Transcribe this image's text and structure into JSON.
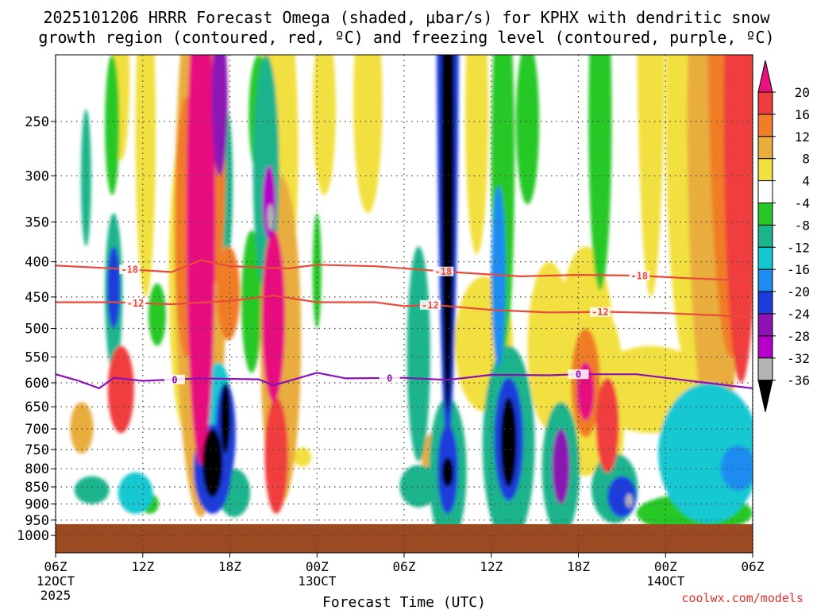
{
  "chart_data": {
    "type": "heatmap",
    "title_line1": "2025101206 HRRR Forecast Omega (shaded, μbar/s) for KPHX with dendritic snow",
    "title_line2": "growth region (contoured, red, ºC) and freezing level (contoured, purple, ºC)",
    "xlabel": "Forecast Time (UTC)",
    "watermark": "coolwx.com/models",
    "y_axis": {
      "scale": "log-pressure",
      "inverted": true,
      "range": [
        1060,
        200
      ],
      "ticks": [
        250,
        300,
        350,
        400,
        450,
        500,
        550,
        600,
        650,
        700,
        750,
        800,
        850,
        900,
        950,
        1000
      ]
    },
    "x_axis": {
      "range_hours": [
        0,
        48
      ],
      "ticks": [
        {
          "h": 0,
          "label": "06Z",
          "sub1": "12OCT",
          "sub2": "2025"
        },
        {
          "h": 6,
          "label": "12Z",
          "sub1": "",
          "sub2": ""
        },
        {
          "h": 12,
          "label": "18Z",
          "sub1": "",
          "sub2": ""
        },
        {
          "h": 18,
          "label": "00Z",
          "sub1": "13OCT",
          "sub2": ""
        },
        {
          "h": 24,
          "label": "06Z",
          "sub1": "",
          "sub2": ""
        },
        {
          "h": 30,
          "label": "12Z",
          "sub1": "",
          "sub2": ""
        },
        {
          "h": 36,
          "label": "18Z",
          "sub1": "",
          "sub2": ""
        },
        {
          "h": 42,
          "label": "00Z",
          "sub1": "14OCT",
          "sub2": ""
        },
        {
          "h": 48,
          "label": "06Z",
          "sub1": "",
          "sub2": ""
        }
      ]
    },
    "colorbar": {
      "labels": [
        "20",
        "16",
        "12",
        "8",
        "4",
        "-4",
        "-8",
        "-12",
        "-16",
        "-20",
        "-24",
        "-28",
        "-32",
        "-36"
      ],
      "bins": [
        {
          "min": 20,
          "max": null,
          "color": "#e8117f"
        },
        {
          "min": 16,
          "max": 20,
          "color": "#f03c3c"
        },
        {
          "min": 12,
          "max": 16,
          "color": "#f07d28"
        },
        {
          "min": 8,
          "max": 12,
          "color": "#e9ad3c"
        },
        {
          "min": 4,
          "max": 8,
          "color": "#f2e040"
        },
        {
          "min": -4,
          "max": 4,
          "color": "#ffffff"
        },
        {
          "min": -8,
          "max": -4,
          "color": "#28c828"
        },
        {
          "min": -12,
          "max": -8,
          "color": "#1eb48c"
        },
        {
          "min": -16,
          "max": -12,
          "color": "#14c8d2"
        },
        {
          "min": -20,
          "max": -16,
          "color": "#1e8cf0"
        },
        {
          "min": -24,
          "max": -20,
          "color": "#1e3cdc"
        },
        {
          "min": -28,
          "max": -24,
          "color": "#8c14b4"
        },
        {
          "min": -32,
          "max": -28,
          "color": "#b400c8"
        },
        {
          "min": -36,
          "max": -32,
          "color": "#b4b4b4"
        },
        {
          "min": null,
          "max": -36,
          "color": "#000000"
        }
      ]
    },
    "ground": {
      "top_pressure": 963,
      "color": "#9b4a22"
    },
    "omega_features": [
      {
        "h": 2.1,
        "p": 310,
        "dh": 0.35,
        "dp": 70,
        "v": -9
      },
      {
        "h": 2.5,
        "p": 860,
        "dh": 1.2,
        "dp": 40,
        "v": -11
      },
      {
        "h": 1.8,
        "p": 700,
        "dh": 0.8,
        "dp": 60,
        "v": 9
      },
      {
        "h": 3.9,
        "p": 260,
        "dh": 0.5,
        "dp": 60,
        "v": -7
      },
      {
        "h": 4.0,
        "p": 440,
        "dh": 0.45,
        "dp": 60,
        "v": -22
      },
      {
        "h": 4.0,
        "p": 460,
        "dh": 0.6,
        "dp": 120,
        "v": -11
      },
      {
        "h": 4.5,
        "p": 620,
        "dh": 0.9,
        "dp": 90,
        "v": 19
      },
      {
        "h": 5.5,
        "p": 870,
        "dh": 1.2,
        "dp": 60,
        "v": -15
      },
      {
        "h": 4.5,
        "p": 225,
        "dh": 0.6,
        "dp": 60,
        "v": 4.5
      },
      {
        "h": 6.2,
        "p": 300,
        "dh": 0.7,
        "dp": 150,
        "v": 5
      },
      {
        "h": 7.0,
        "p": 480,
        "dh": 0.6,
        "dp": 50,
        "v": -6
      },
      {
        "h": 6.5,
        "p": 900,
        "dh": 0.6,
        "dp": 30,
        "v": -6
      },
      {
        "h": 9.0,
        "p": 390,
        "dh": 0.8,
        "dp": 160,
        "v": 14
      },
      {
        "h": 9.0,
        "p": 480,
        "dh": 1.2,
        "dp": 230,
        "v": 6
      },
      {
        "h": 10.0,
        "p": 470,
        "dh": 1.0,
        "dp": 320,
        "v": 24
      },
      {
        "h": 10.0,
        "p": 540,
        "dh": 1.8,
        "dp": 400,
        "v": 8
      },
      {
        "h": 11.0,
        "p": 310,
        "dh": 0.7,
        "dp": 120,
        "v": 13
      },
      {
        "h": 10.8,
        "p": 790,
        "dh": 0.7,
        "dp": 90,
        "v": -40
      },
      {
        "h": 10.8,
        "p": 810,
        "dh": 1.3,
        "dp": 120,
        "v": -22
      },
      {
        "h": 11.2,
        "p": 660,
        "dh": 0.9,
        "dp": 100,
        "v": -14
      },
      {
        "h": 11.7,
        "p": 680,
        "dh": 0.35,
        "dp": 80,
        "v": -40
      },
      {
        "h": 11.7,
        "p": 720,
        "dh": 0.7,
        "dp": 120,
        "v": -24
      },
      {
        "h": 11.3,
        "p": 240,
        "dh": 0.55,
        "dp": 60,
        "v": -26
      },
      {
        "h": 11.8,
        "p": 320,
        "dh": 0.4,
        "dp": 80,
        "v": -10
      },
      {
        "h": 12.3,
        "p": 870,
        "dh": 1.1,
        "dp": 70,
        "v": -12
      },
      {
        "h": 11.9,
        "p": 450,
        "dh": 0.8,
        "dp": 70,
        "v": 14
      },
      {
        "h": 13.5,
        "p": 470,
        "dh": 0.7,
        "dp": 110,
        "v": -8
      },
      {
        "h": 14.5,
        "p": 320,
        "dh": 0.9,
        "dp": 120,
        "v": -12
      },
      {
        "h": 14.7,
        "p": 330,
        "dh": 0.45,
        "dp": 40,
        "v": -30
      },
      {
        "h": 14.8,
        "p": 345,
        "dh": 0.22,
        "dp": 15,
        "v": -36
      },
      {
        "h": 14.0,
        "p": 250,
        "dh": 0.7,
        "dp": 50,
        "v": -6
      },
      {
        "h": 15.3,
        "p": 330,
        "dh": 1.4,
        "dp": 180,
        "v": 5
      },
      {
        "h": 15.0,
        "p": 500,
        "dh": 0.8,
        "dp": 140,
        "v": 22
      },
      {
        "h": 15.2,
        "p": 780,
        "dh": 0.8,
        "dp": 150,
        "v": 18
      },
      {
        "h": 15.5,
        "p": 600,
        "dh": 1.4,
        "dp": 300,
        "v": 10
      },
      {
        "h": 16.0,
        "p": 700,
        "dh": 0.6,
        "dp": 60,
        "v": -6
      },
      {
        "h": 17.0,
        "p": 770,
        "dh": 0.6,
        "dp": 25,
        "v": 5
      },
      {
        "h": 18.0,
        "p": 420,
        "dh": 0.3,
        "dp": 80,
        "v": -6
      },
      {
        "h": 18.5,
        "p": 250,
        "dh": 0.8,
        "dp": 70,
        "v": 4.5
      },
      {
        "h": 21.5,
        "p": 250,
        "dh": 1.0,
        "dp": 90,
        "v": 4.5
      },
      {
        "h": 25.0,
        "p": 850,
        "dh": 1.3,
        "dp": 60,
        "v": -11
      },
      {
        "h": 25.0,
        "p": 580,
        "dh": 0.8,
        "dp": 200,
        "v": -9
      },
      {
        "h": 26.0,
        "p": 770,
        "dh": 0.8,
        "dp": 60,
        "v": 8
      },
      {
        "h": 27.0,
        "p": 810,
        "dh": 0.7,
        "dp": 120,
        "v": -24
      },
      {
        "h": 27.0,
        "p": 810,
        "dh": 0.4,
        "dp": 40,
        "v": -40
      },
      {
        "h": 27.0,
        "p": 830,
        "dh": 1.3,
        "dp": 200,
        "v": -10
      },
      {
        "h": 27.0,
        "p": 380,
        "dh": 0.45,
        "dp": 280,
        "v": -40
      },
      {
        "h": 27.0,
        "p": 380,
        "dh": 0.8,
        "dp": 360,
        "v": -22
      },
      {
        "h": 27.0,
        "p": 430,
        "dh": 1.1,
        "dp": 460,
        "v": -10
      },
      {
        "h": 29.0,
        "p": 270,
        "dh": 0.8,
        "dp": 120,
        "v": 5
      },
      {
        "h": 29.5,
        "p": 540,
        "dh": 2.0,
        "dp": 120,
        "v": 5
      },
      {
        "h": 30.8,
        "p": 350,
        "dh": 0.8,
        "dp": 200,
        "v": -7
      },
      {
        "h": 30.5,
        "p": 440,
        "dh": 0.5,
        "dp": 130,
        "v": -18
      },
      {
        "h": 31.2,
        "p": 740,
        "dh": 0.55,
        "dp": 110,
        "v": -40
      },
      {
        "h": 31.2,
        "p": 740,
        "dh": 1.0,
        "dp": 150,
        "v": -22
      },
      {
        "h": 31.2,
        "p": 780,
        "dh": 1.8,
        "dp": 250,
        "v": -10
      },
      {
        "h": 32.5,
        "p": 260,
        "dh": 0.8,
        "dp": 70,
        "v": -6
      },
      {
        "h": 34.0,
        "p": 550,
        "dh": 1.5,
        "dp": 150,
        "v": 6
      },
      {
        "h": 34.8,
        "p": 800,
        "dh": 0.6,
        "dp": 100,
        "v": -26
      },
      {
        "h": 34.8,
        "p": 820,
        "dh": 1.3,
        "dp": 180,
        "v": -10
      },
      {
        "h": 36.5,
        "p": 610,
        "dh": 1.0,
        "dp": 110,
        "v": 13
      },
      {
        "h": 36.5,
        "p": 620,
        "dh": 0.6,
        "dp": 60,
        "v": 22
      },
      {
        "h": 36.5,
        "p": 600,
        "dh": 2.0,
        "dp": 220,
        "v": 6
      },
      {
        "h": 38.0,
        "p": 700,
        "dh": 0.8,
        "dp": 110,
        "v": 17
      },
      {
        "h": 38.0,
        "p": 680,
        "dh": 1.2,
        "dp": 200,
        "v": 7
      },
      {
        "h": 39.0,
        "p": 880,
        "dh": 1.0,
        "dp": 60,
        "v": -22
      },
      {
        "h": 39.5,
        "p": 890,
        "dh": 0.25,
        "dp": 20,
        "v": -34
      },
      {
        "h": 38.5,
        "p": 860,
        "dh": 1.6,
        "dp": 100,
        "v": -10
      },
      {
        "h": 37.5,
        "p": 290,
        "dh": 0.8,
        "dp": 150,
        "v": -8
      },
      {
        "h": 41.0,
        "p": 250,
        "dh": 1.0,
        "dp": 200,
        "v": 5
      },
      {
        "h": 44.0,
        "p": 350,
        "dh": 2.0,
        "dp": 250,
        "v": 6
      },
      {
        "h": 45.5,
        "p": 420,
        "dh": 2.0,
        "dp": 340,
        "v": 10
      },
      {
        "h": 46.5,
        "p": 300,
        "dh": 1.6,
        "dp": 250,
        "v": 14
      },
      {
        "h": 47.2,
        "p": 350,
        "dh": 1.2,
        "dp": 250,
        "v": 18
      },
      {
        "h": 47.0,
        "p": 230,
        "dh": 0.8,
        "dp": 60,
        "v": 12
      },
      {
        "h": 41.0,
        "p": 620,
        "dh": 4.0,
        "dp": 90,
        "v": 6
      },
      {
        "h": 45.0,
        "p": 780,
        "dh": 3.5,
        "dp": 180,
        "v": -13
      },
      {
        "h": 47.0,
        "p": 800,
        "dh": 1.2,
        "dp": 60,
        "v": -20
      },
      {
        "h": 44.0,
        "p": 930,
        "dh": 4.0,
        "dp": 60,
        "v": -7
      }
    ],
    "isotherms": [
      {
        "name": "-18",
        "color": "#e84a3c",
        "label_hours": [
          5.1,
          26.7,
          40.2
        ],
        "points": [
          [
            0,
            405
          ],
          [
            4,
            409
          ],
          [
            8,
            414
          ],
          [
            10,
            398
          ],
          [
            12,
            406
          ],
          [
            16,
            409
          ],
          [
            18,
            404
          ],
          [
            22,
            406
          ],
          [
            26,
            412
          ],
          [
            28,
            415
          ],
          [
            32,
            420
          ],
          [
            36,
            418
          ],
          [
            40,
            419
          ],
          [
            44,
            423
          ],
          [
            48,
            426
          ]
        ]
      },
      {
        "name": "-12",
        "color": "#e84a3c",
        "label_hours": [
          5.5,
          25.8,
          37.5
        ],
        "points": [
          [
            0,
            458
          ],
          [
            4,
            458
          ],
          [
            8,
            461
          ],
          [
            12,
            456
          ],
          [
            15,
            448
          ],
          [
            18,
            458
          ],
          [
            22,
            458
          ],
          [
            24,
            464
          ],
          [
            26,
            462
          ],
          [
            30,
            470
          ],
          [
            34,
            474
          ],
          [
            38,
            473
          ],
          [
            42,
            475
          ],
          [
            46,
            479
          ],
          [
            48,
            482
          ]
        ]
      },
      {
        "name": "0",
        "color": "#8d0fb8",
        "label_hours": [
          8.2,
          23.0,
          36.0
        ],
        "points": [
          [
            0,
            583
          ],
          [
            1.5,
            595
          ],
          [
            3,
            611
          ],
          [
            4,
            590
          ],
          [
            6,
            596
          ],
          [
            10,
            591
          ],
          [
            14,
            593
          ],
          [
            15,
            605
          ],
          [
            18,
            580
          ],
          [
            20,
            591
          ],
          [
            24,
            590
          ],
          [
            27,
            594
          ],
          [
            30,
            584
          ],
          [
            34,
            585
          ],
          [
            36,
            583
          ],
          [
            40,
            583
          ],
          [
            44,
            597
          ],
          [
            48,
            611
          ]
        ]
      }
    ]
  }
}
